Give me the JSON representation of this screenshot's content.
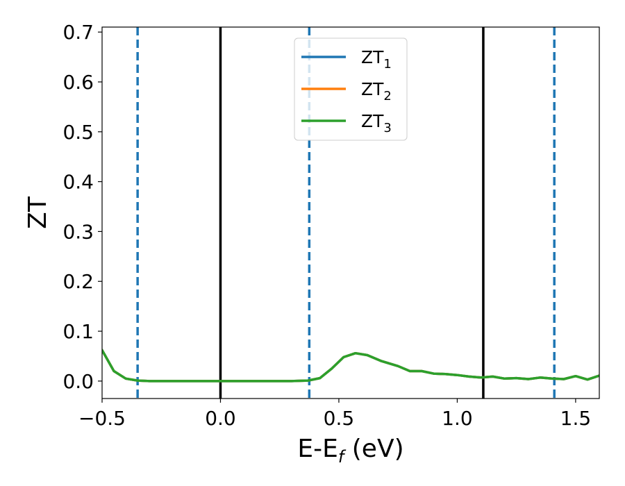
{
  "chart_data": {
    "type": "line",
    "xlabel": {
      "main": "E-E",
      "sub": "f",
      "suffix": " (eV)"
    },
    "ylabel": "ZT",
    "xlim": [
      -0.5,
      1.6
    ],
    "ylim": [
      -0.035,
      0.71
    ],
    "x_ticks": [
      -0.5,
      0.0,
      0.5,
      1.0,
      1.5
    ],
    "x_tick_labels": [
      "−0.5",
      "0.0",
      "0.5",
      "1.0",
      "1.5"
    ],
    "y_ticks": [
      0.0,
      0.1,
      0.2,
      0.3,
      0.4,
      0.5,
      0.6,
      0.7
    ],
    "y_tick_labels": [
      "0.0",
      "0.1",
      "0.2",
      "0.3",
      "0.4",
      "0.5",
      "0.6",
      "0.7"
    ],
    "grid": false,
    "legend_position": "top-center",
    "series": [
      {
        "name_main": "ZT",
        "name_sub": "1",
        "color": "#1f77b4",
        "x": [
          -0.5,
          -0.45,
          -0.4,
          -0.35,
          -0.3,
          -0.2,
          -0.1,
          0.0,
          0.1,
          0.2,
          0.3,
          0.37,
          0.42,
          0.47,
          0.52,
          0.57,
          0.62,
          0.68,
          0.75,
          0.8,
          0.85,
          0.9,
          0.95,
          1.0,
          1.05,
          1.1,
          1.15,
          1.2,
          1.25,
          1.3,
          1.35,
          1.4,
          1.45,
          1.5,
          1.55,
          1.6
        ],
        "y": [
          0.062,
          0.02,
          0.005,
          0.001,
          0.0,
          0.0,
          0.0,
          0.0,
          0.0,
          0.0,
          0.0,
          0.001,
          0.006,
          0.025,
          0.048,
          0.056,
          0.052,
          0.04,
          0.03,
          0.02,
          0.02,
          0.015,
          0.014,
          0.012,
          0.009,
          0.007,
          0.009,
          0.005,
          0.006,
          0.004,
          0.007,
          0.005,
          0.004,
          0.01,
          0.003,
          0.011
        ]
      },
      {
        "name_main": "ZT",
        "name_sub": "2",
        "color": "#ff7f0e",
        "x": [
          -0.5,
          -0.45,
          -0.4,
          -0.35,
          -0.3,
          -0.2,
          -0.1,
          0.0,
          0.1,
          0.2,
          0.3,
          0.37,
          0.42,
          0.47,
          0.52,
          0.57,
          0.62,
          0.68,
          0.75,
          0.8,
          0.85,
          0.9,
          0.95,
          1.0,
          1.05,
          1.1,
          1.15,
          1.2,
          1.25,
          1.3,
          1.35,
          1.4,
          1.45,
          1.5,
          1.55,
          1.6
        ],
        "y": [
          0.062,
          0.02,
          0.005,
          0.001,
          0.0,
          0.0,
          0.0,
          0.0,
          0.0,
          0.0,
          0.0,
          0.001,
          0.006,
          0.025,
          0.048,
          0.056,
          0.052,
          0.04,
          0.03,
          0.02,
          0.02,
          0.015,
          0.014,
          0.012,
          0.009,
          0.007,
          0.009,
          0.005,
          0.006,
          0.004,
          0.007,
          0.005,
          0.004,
          0.01,
          0.003,
          0.011
        ]
      },
      {
        "name_main": "ZT",
        "name_sub": "3",
        "color": "#2ca02c",
        "x": [
          -0.5,
          -0.45,
          -0.4,
          -0.35,
          -0.3,
          -0.2,
          -0.1,
          0.0,
          0.1,
          0.2,
          0.3,
          0.37,
          0.42,
          0.47,
          0.52,
          0.57,
          0.62,
          0.68,
          0.75,
          0.8,
          0.85,
          0.9,
          0.95,
          1.0,
          1.05,
          1.1,
          1.15,
          1.2,
          1.25,
          1.3,
          1.35,
          1.4,
          1.45,
          1.5,
          1.55,
          1.6
        ],
        "y": [
          0.062,
          0.02,
          0.005,
          0.001,
          0.0,
          0.0,
          0.0,
          0.0,
          0.0,
          0.0,
          0.0,
          0.001,
          0.006,
          0.025,
          0.048,
          0.056,
          0.052,
          0.04,
          0.03,
          0.02,
          0.02,
          0.015,
          0.014,
          0.012,
          0.009,
          0.007,
          0.009,
          0.005,
          0.006,
          0.004,
          0.007,
          0.005,
          0.004,
          0.01,
          0.003,
          0.011
        ]
      }
    ],
    "vertical_lines": [
      {
        "x": 0.0,
        "style": "solid",
        "color": "#000000"
      },
      {
        "x": 1.11,
        "style": "solid",
        "color": "#000000"
      },
      {
        "x": -0.35,
        "style": "dashed",
        "color": "#1f77b4"
      },
      {
        "x": 0.375,
        "style": "dashed",
        "color": "#1f77b4"
      },
      {
        "x": 1.41,
        "style": "dashed",
        "color": "#1f77b4"
      }
    ]
  }
}
